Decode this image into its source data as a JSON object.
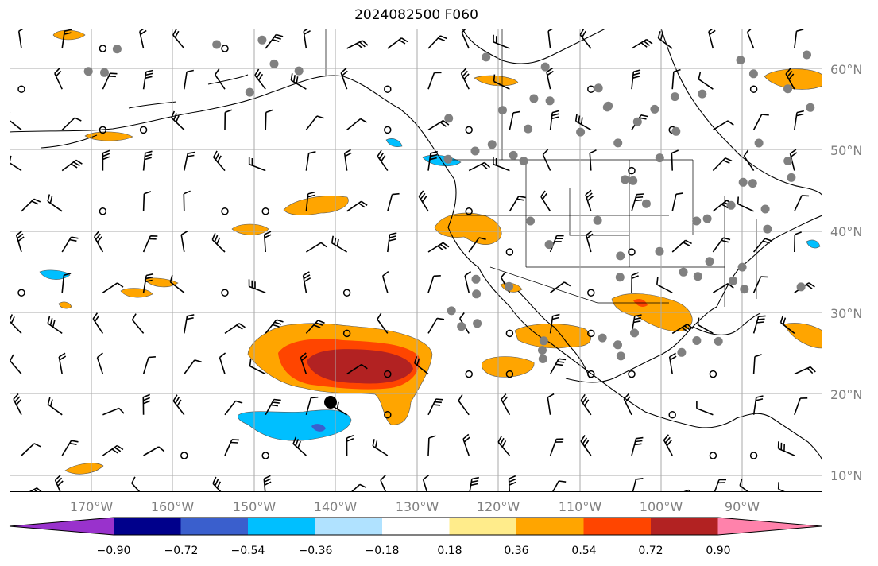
{
  "title": "2024082500 F060",
  "lat_labels": [
    "60°N",
    "50°N",
    "40°N",
    "30°N",
    "20°N",
    "10°N"
  ],
  "lon_labels": [
    "170°W",
    "160°W",
    "150°W",
    "140°W",
    "130°W",
    "120°W",
    "110°W",
    "100°W",
    "90°W"
  ],
  "colorbar": {
    "tick_labels": [
      "−0.90",
      "−0.72",
      "−0.54",
      "−0.36",
      "−0.18",
      "0.18",
      "0.36",
      "0.54",
      "0.72",
      "0.90"
    ],
    "colors": [
      "#9932cc",
      "#00008b",
      "#3a5fcd",
      "#00bfff",
      "#b0e2ff",
      "#ffffff",
      "#ffec8b",
      "#ffa500",
      "#ff4500",
      "#b22222",
      "#ff82ab"
    ]
  },
  "colors": {
    "gridline": "#aaaaaa",
    "coastline": "#000000",
    "label_gray": "#808080",
    "station_dot": "#808080"
  }
}
